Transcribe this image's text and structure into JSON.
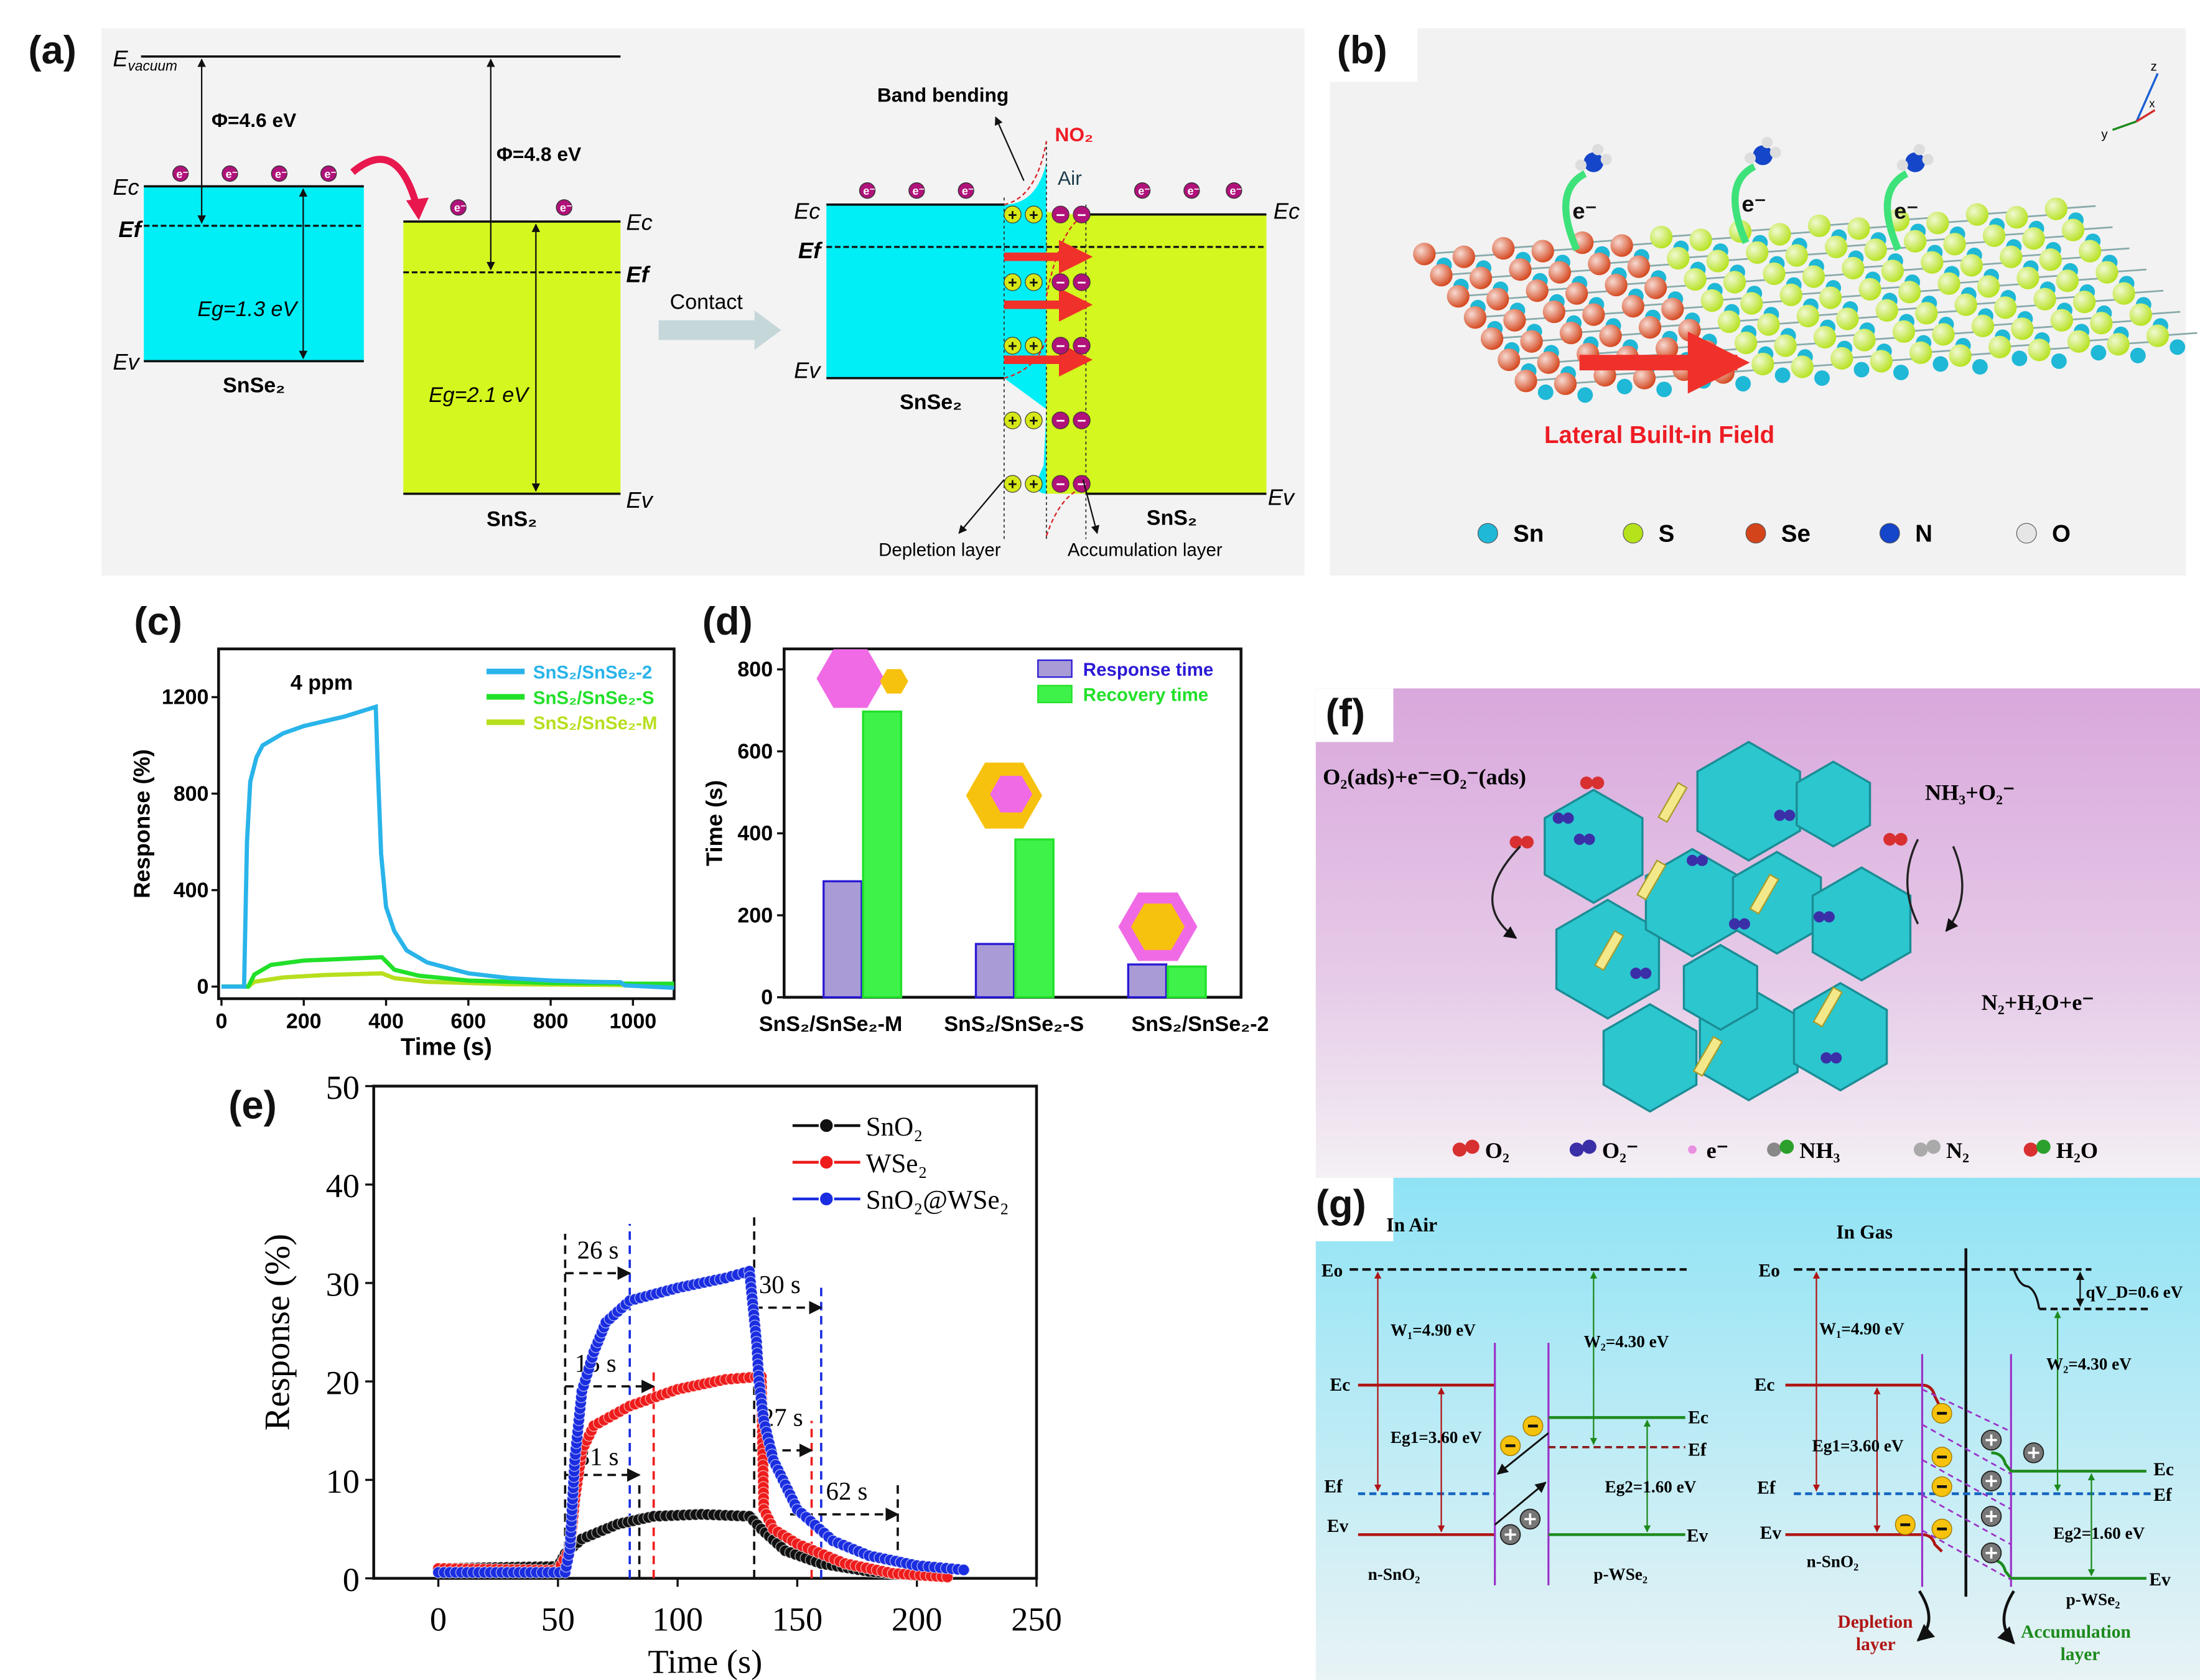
{
  "panels": {
    "a": {
      "label": "(a)",
      "e_vacuum": "E",
      "e_vacuum_sub": "vacuum",
      "phi1": "Φ=4.6 eV",
      "phi2": "Φ=4.8 eV",
      "ec": "Ec",
      "ef": "Ef",
      "ev": "Ev",
      "eg1": "Eg=1.3 eV",
      "eg2": "Eg=2.1 eV",
      "snse2": "SnSe₂",
      "sns2": "SnS₂",
      "electron": "e⁻",
      "contact": "Contact",
      "band_bending": "Band bending",
      "no2": "NO₂",
      "air": "Air",
      "depletion": "Depletion layer",
      "accumulation": "Accumulation layer",
      "plus": "+",
      "minus": "−"
    },
    "b": {
      "label": "(b)",
      "electron": "e⁻",
      "field": "Lateral Built-in Field",
      "axes": {
        "z": "z",
        "y": "y",
        "x": "x"
      },
      "legend": [
        {
          "label": "Sn",
          "color": "#1fb8d6"
        },
        {
          "label": "S",
          "color": "#b5e21b"
        },
        {
          "label": "Se",
          "color": "#d4441a"
        },
        {
          "label": "N",
          "color": "#1546c9"
        },
        {
          "label": "O",
          "color": "#e6e6e6"
        }
      ]
    },
    "c": {
      "label": "(c)",
      "annotation": "4 ppm"
    },
    "d": {
      "label": "(d)"
    },
    "e": {
      "label": "(e)",
      "annotations": [
        "26 s",
        "15 s",
        "31 s",
        "30 s",
        "27 s",
        "62 s"
      ]
    },
    "f": {
      "label": "(f)",
      "eq1": "O₂(ads)+e⁻=O₂⁻(ads)",
      "eq2": "NH₃+O₂⁻",
      "eq3": "N₂+H₂O+e⁻",
      "legend": [
        "O₂",
        "O₂⁻",
        "e⁻",
        "NH₃",
        "N₂",
        "H₂O"
      ]
    },
    "g": {
      "label": "(g)",
      "in_air": "In Air",
      "in_gas": "In Gas",
      "eo": "Eo",
      "ec": "Ec",
      "ef": "Ef",
      "ev": "Ev",
      "w1": "W₁=4.90 eV",
      "w2": "W₂=4.30 eV",
      "eg1": "Eg1=3.60 eV",
      "eg2": "Eg2=1.60 eV",
      "n_sno2": "n-SnO₂",
      "p_wse2": "p-WSe₂",
      "qvd": "qV_D=0.6 eV",
      "depletion": [
        "Depletion",
        "layer"
      ],
      "accumulation": [
        "Accumulation",
        "layer"
      ]
    }
  },
  "chart_data": [
    {
      "id": "c",
      "type": "line",
      "title": "",
      "xlabel": "Time (s)",
      "ylabel": "Response (%)",
      "xlim": [
        -7,
        1100
      ],
      "ylim": [
        -50,
        1400
      ],
      "xticks": [
        0,
        200,
        400,
        600,
        800,
        1000
      ],
      "yticks": [
        0,
        400,
        800,
        1200
      ],
      "legend_position": "top-right",
      "series": [
        {
          "name": "SnS₂/SnSe₂-2",
          "color": "#29b4ea",
          "points": [
            [
              0,
              0
            ],
            [
              55,
              0
            ],
            [
              62,
              600
            ],
            [
              70,
              850
            ],
            [
              85,
              950
            ],
            [
              100,
              1000
            ],
            [
              150,
              1050
            ],
            [
              200,
              1080
            ],
            [
              300,
              1120
            ],
            [
              375,
              1160
            ],
            [
              380,
              900
            ],
            [
              388,
              550
            ],
            [
              400,
              330
            ],
            [
              420,
              230
            ],
            [
              450,
              150
            ],
            [
              500,
              100
            ],
            [
              600,
              55
            ],
            [
              700,
              35
            ],
            [
              800,
              25
            ],
            [
              900,
              20
            ],
            [
              970,
              18
            ],
            [
              980,
              5
            ],
            [
              1100,
              -5
            ]
          ]
        },
        {
          "name": "SnS₂/SnSe₂-S",
          "color": "#22e02a",
          "points": [
            [
              0,
              0
            ],
            [
              65,
              0
            ],
            [
              80,
              50
            ],
            [
              120,
              90
            ],
            [
              200,
              108
            ],
            [
              300,
              115
            ],
            [
              390,
              122
            ],
            [
              420,
              70
            ],
            [
              480,
              45
            ],
            [
              600,
              25
            ],
            [
              800,
              15
            ],
            [
              1000,
              12
            ],
            [
              1100,
              12
            ]
          ]
        },
        {
          "name": "SnS₂/SnSe₂-M",
          "color": "#b7df1e",
          "points": [
            [
              0,
              0
            ],
            [
              65,
              0
            ],
            [
              80,
              20
            ],
            [
              150,
              38
            ],
            [
              250,
              48
            ],
            [
              390,
              55
            ],
            [
              420,
              35
            ],
            [
              500,
              20
            ],
            [
              700,
              10
            ],
            [
              1000,
              6
            ],
            [
              1100,
              6
            ]
          ]
        }
      ]
    },
    {
      "id": "d",
      "type": "bar",
      "xlabel": "",
      "ylabel": "Time (s)",
      "ylim": [
        0,
        850
      ],
      "yticks": [
        0,
        200,
        400,
        600,
        800
      ],
      "legend_position": "top-right",
      "categories": [
        "SnS₂/SnSe₂-M",
        "SnS₂/SnSe₂-S",
        "SnS₂/SnSe₂-2"
      ],
      "series": [
        {
          "name": "Response time",
          "color": "#2b1ad6",
          "values": [
            283,
            130,
            80
          ]
        },
        {
          "name": "Recovery time",
          "color": "#22e02a",
          "values": [
            697,
            385,
            75
          ]
        }
      ]
    },
    {
      "id": "e",
      "type": "line",
      "xlabel": "Time (s)",
      "ylabel": "Response (%)",
      "xlim": [
        -27,
        250
      ],
      "ylim": [
        0,
        50
      ],
      "xticks": [
        0,
        50,
        100,
        150,
        200,
        250
      ],
      "yticks": [
        0,
        10,
        20,
        30,
        40,
        50
      ],
      "legend_position": "top-right",
      "series": [
        {
          "name": "SnO₂",
          "color": "#111111",
          "points": [
            [
              0,
              1
            ],
            [
              50,
              1.2
            ],
            [
              53,
              2.5
            ],
            [
              60,
              4
            ],
            [
              75,
              5.5
            ],
            [
              90,
              6.3
            ],
            [
              110,
              6.5
            ],
            [
              130,
              6.3
            ],
            [
              135,
              5
            ],
            [
              145,
              2.8
            ],
            [
              160,
              1.5
            ],
            [
              180,
              0.7
            ],
            [
              200,
              0.3
            ]
          ]
        },
        {
          "name": "WSe₂",
          "color": "#ee1c1c",
          "points": [
            [
              0,
              1
            ],
            [
              50,
              0.8
            ],
            [
              55,
              3
            ],
            [
              57,
              8
            ],
            [
              60,
              13
            ],
            [
              65,
              15.5
            ],
            [
              80,
              17.5
            ],
            [
              100,
              19.2
            ],
            [
              120,
              20.2
            ],
            [
              135,
              20.5
            ],
            [
              136,
              7
            ],
            [
              140,
              5
            ],
            [
              150,
              3.5
            ],
            [
              170,
              1.5
            ],
            [
              190,
              0.5
            ],
            [
              215,
              0.1
            ]
          ]
        },
        {
          "name": "SnO₂@WSe₂",
          "color": "#1a2de0",
          "points": [
            [
              0,
              0.6
            ],
            [
              53,
              0.6
            ],
            [
              55,
              3
            ],
            [
              57,
              12
            ],
            [
              60,
              19
            ],
            [
              65,
              23
            ],
            [
              70,
              26
            ],
            [
              80,
              28.2
            ],
            [
              100,
              29.5
            ],
            [
              120,
              30.5
            ],
            [
              130,
              31.2
            ],
            [
              133,
              24
            ],
            [
              134,
              20
            ],
            [
              136,
              16
            ],
            [
              140,
              12
            ],
            [
              150,
              7
            ],
            [
              165,
              3.8
            ],
            [
              180,
              2.3
            ],
            [
              200,
              1.3
            ],
            [
              222,
              0.8
            ]
          ]
        }
      ]
    }
  ]
}
